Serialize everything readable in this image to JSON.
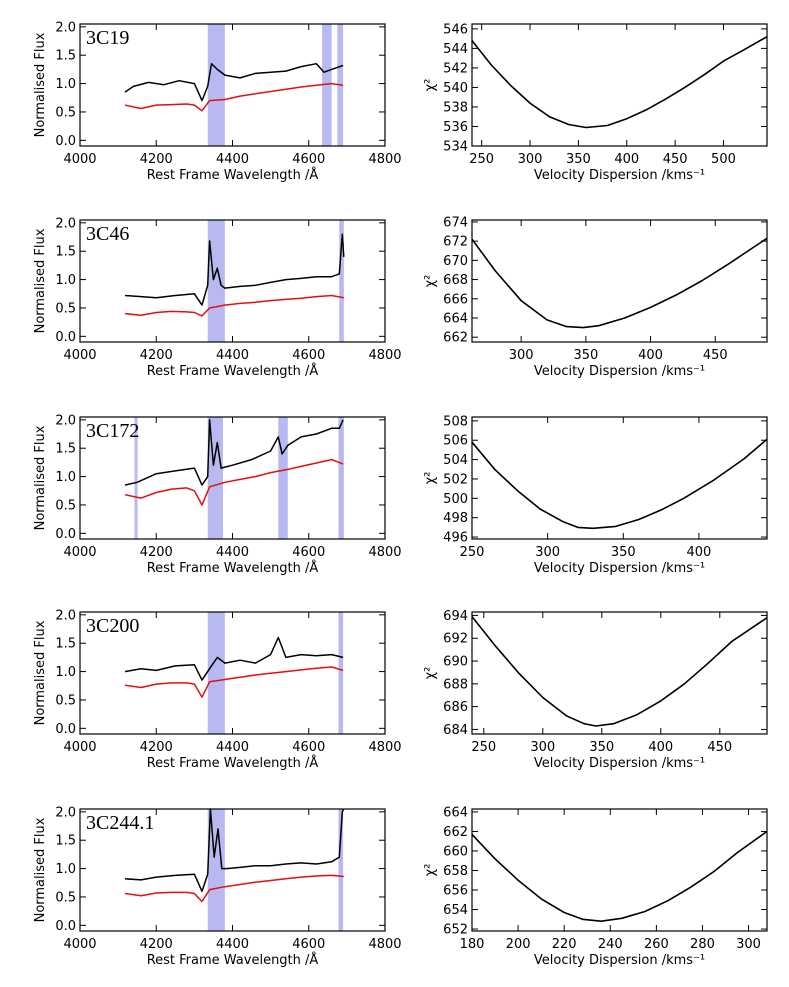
{
  "figure": {
    "styles": {
      "spectrum_color": "#000000",
      "model_color": "#e01010",
      "mask_color": "#b9b9f2",
      "axis_color": "#000000"
    }
  },
  "chart_data": [
    {
      "type": "line",
      "panel": "spectrum",
      "label": "3C19",
      "xlabel": "Rest Frame Wavelength /Å",
      "ylabel": "Normalised Flux",
      "xlim": [
        4000,
        4800
      ],
      "ylim": [
        -0.1,
        2.05
      ],
      "xticks": [
        4000,
        4200,
        4400,
        4600,
        4800
      ],
      "yticks": [
        0.0,
        0.5,
        1.0,
        1.5,
        2.0
      ],
      "mask_regions": [
        [
          4335,
          4380
        ],
        [
          4635,
          4660
        ],
        [
          4675,
          4690
        ]
      ],
      "series": [
        {
          "role": "spectrum",
          "x": [
            4118,
            4140,
            4180,
            4220,
            4260,
            4300,
            4320,
            4335,
            4345,
            4360,
            4380,
            4420,
            4460,
            4500,
            4540,
            4580,
            4620,
            4640,
            4660,
            4690
          ],
          "y": [
            0.85,
            0.95,
            1.02,
            0.98,
            1.05,
            1.0,
            0.7,
            0.95,
            1.35,
            1.25,
            1.15,
            1.1,
            1.18,
            1.2,
            1.22,
            1.3,
            1.35,
            1.2,
            1.25,
            1.32
          ]
        },
        {
          "role": "model",
          "x": [
            4118,
            4160,
            4200,
            4240,
            4280,
            4300,
            4320,
            4340,
            4380,
            4420,
            4460,
            4500,
            4540,
            4580,
            4620,
            4660,
            4690
          ],
          "y": [
            0.62,
            0.56,
            0.62,
            0.63,
            0.64,
            0.62,
            0.52,
            0.7,
            0.72,
            0.78,
            0.82,
            0.86,
            0.9,
            0.94,
            0.97,
            1.0,
            0.97
          ]
        }
      ]
    },
    {
      "type": "line",
      "panel": "chi2",
      "label": "",
      "xlabel": "Velocity Dispersion /kms⁻¹",
      "ylabel": "χ²",
      "xlim": [
        240,
        545
      ],
      "ylim": [
        534,
        546.5
      ],
      "xticks": [
        250,
        300,
        350,
        400,
        450,
        500
      ],
      "yticks": [
        534,
        536,
        538,
        540,
        542,
        544,
        546
      ],
      "series": [
        {
          "role": "chi2",
          "x": [
            240,
            260,
            280,
            300,
            320,
            340,
            358,
            380,
            400,
            420,
            440,
            460,
            480,
            500,
            520,
            545
          ],
          "y": [
            544.8,
            542.3,
            540.2,
            538.4,
            537.0,
            536.2,
            535.9,
            536.1,
            536.8,
            537.7,
            538.8,
            540.0,
            541.3,
            542.7,
            543.8,
            545.2
          ]
        }
      ]
    },
    {
      "type": "line",
      "panel": "spectrum",
      "label": "3C46",
      "xlabel": "Rest Frame Wavelength /Å",
      "ylabel": "Normalised Flux",
      "xlim": [
        4000,
        4800
      ],
      "ylim": [
        -0.1,
        2.05
      ],
      "xticks": [
        4000,
        4200,
        4400,
        4600,
        4800
      ],
      "yticks": [
        0.0,
        0.5,
        1.0,
        1.5,
        2.0
      ],
      "mask_regions": [
        [
          4335,
          4380
        ],
        [
          4680,
          4692
        ]
      ],
      "series": [
        {
          "role": "spectrum",
          "x": [
            4118,
            4160,
            4200,
            4250,
            4300,
            4320,
            4335,
            4340,
            4350,
            4360,
            4370,
            4380,
            4420,
            4460,
            4500,
            4540,
            4580,
            4620,
            4660,
            4680,
            4688,
            4692
          ],
          "y": [
            0.72,
            0.7,
            0.68,
            0.72,
            0.75,
            0.55,
            0.9,
            1.68,
            1.0,
            1.2,
            0.9,
            0.85,
            0.88,
            0.9,
            0.95,
            1.0,
            1.02,
            1.05,
            1.05,
            1.1,
            1.8,
            1.4
          ]
        },
        {
          "role": "model",
          "x": [
            4118,
            4160,
            4200,
            4240,
            4280,
            4300,
            4320,
            4340,
            4380,
            4420,
            4460,
            4500,
            4540,
            4580,
            4620,
            4660,
            4692
          ],
          "y": [
            0.4,
            0.37,
            0.42,
            0.44,
            0.43,
            0.42,
            0.36,
            0.5,
            0.55,
            0.58,
            0.6,
            0.63,
            0.65,
            0.67,
            0.7,
            0.72,
            0.68
          ]
        }
      ]
    },
    {
      "type": "line",
      "panel": "chi2",
      "label": "",
      "xlabel": "Velocity Dispersion /kms⁻¹",
      "ylabel": "χ²",
      "xlim": [
        262,
        490
      ],
      "ylim": [
        661.5,
        674.2
      ],
      "xticks": [
        300,
        350,
        400,
        450
      ],
      "yticks": [
        662,
        664,
        666,
        668,
        670,
        672,
        674
      ],
      "series": [
        {
          "role": "chi2",
          "x": [
            262,
            280,
            300,
            320,
            335,
            348,
            360,
            380,
            400,
            420,
            440,
            460,
            490
          ],
          "y": [
            672.2,
            668.9,
            665.8,
            663.8,
            663.1,
            663.0,
            663.2,
            664.0,
            665.1,
            666.4,
            667.9,
            669.6,
            672.3
          ]
        }
      ]
    },
    {
      "type": "line",
      "panel": "spectrum",
      "label": "3C172",
      "xlabel": "Rest Frame Wavelength /Å",
      "ylabel": "Normalised Flux",
      "xlim": [
        4000,
        4800
      ],
      "ylim": [
        -0.1,
        2.05
      ],
      "xticks": [
        4000,
        4200,
        4400,
        4600,
        4800
      ],
      "yticks": [
        0.0,
        0.5,
        1.0,
        1.5,
        2.0
      ],
      "mask_regions": [
        [
          4143,
          4151
        ],
        [
          4335,
          4375
        ],
        [
          4520,
          4545
        ],
        [
          4678,
          4692
        ]
      ],
      "series": [
        {
          "role": "spectrum",
          "x": [
            4118,
            4150,
            4200,
            4250,
            4300,
            4320,
            4335,
            4340,
            4350,
            4360,
            4370,
            4400,
            4450,
            4500,
            4520,
            4530,
            4545,
            4580,
            4620,
            4660,
            4680,
            4690
          ],
          "y": [
            0.85,
            0.9,
            1.05,
            1.1,
            1.15,
            0.85,
            1.0,
            2.0,
            1.2,
            1.6,
            1.15,
            1.2,
            1.3,
            1.45,
            1.7,
            1.4,
            1.55,
            1.7,
            1.75,
            1.85,
            1.85,
            2.0
          ]
        },
        {
          "role": "model",
          "x": [
            4118,
            4160,
            4200,
            4240,
            4280,
            4300,
            4320,
            4340,
            4380,
            4420,
            4460,
            4500,
            4540,
            4580,
            4620,
            4660,
            4690
          ],
          "y": [
            0.68,
            0.62,
            0.72,
            0.78,
            0.8,
            0.75,
            0.5,
            0.82,
            0.9,
            0.95,
            1.0,
            1.07,
            1.12,
            1.18,
            1.24,
            1.3,
            1.22
          ]
        }
      ]
    },
    {
      "type": "line",
      "panel": "chi2",
      "label": "",
      "xlabel": "Velocity Dispersion /kms⁻¹",
      "ylabel": "χ²",
      "xlim": [
        250,
        445
      ],
      "ylim": [
        495.8,
        508.4
      ],
      "xticks": [
        250,
        300,
        350,
        400
      ],
      "yticks": [
        496,
        498,
        500,
        502,
        504,
        506,
        508
      ],
      "series": [
        {
          "role": "chi2",
          "x": [
            250,
            265,
            280,
            295,
            310,
            320,
            330,
            345,
            360,
            375,
            390,
            410,
            430,
            445
          ],
          "y": [
            505.8,
            503.0,
            500.8,
            498.9,
            497.6,
            497.0,
            496.9,
            497.1,
            497.8,
            498.8,
            500.0,
            501.9,
            504.1,
            506.1
          ]
        }
      ]
    },
    {
      "type": "line",
      "panel": "spectrum",
      "label": "3C200",
      "xlabel": "Rest Frame Wavelength /Å",
      "ylabel": "Normalised Flux",
      "xlim": [
        4000,
        4800
      ],
      "ylim": [
        -0.1,
        2.05
      ],
      "xticks": [
        4000,
        4200,
        4400,
        4600,
        4800
      ],
      "yticks": [
        0.0,
        0.5,
        1.0,
        1.5,
        2.0
      ],
      "mask_regions": [
        [
          4335,
          4380
        ],
        [
          4678,
          4690
        ]
      ],
      "series": [
        {
          "role": "spectrum",
          "x": [
            4118,
            4160,
            4200,
            4250,
            4300,
            4320,
            4340,
            4360,
            4380,
            4420,
            4460,
            4500,
            4520,
            4540,
            4580,
            4620,
            4660,
            4690
          ],
          "y": [
            1.0,
            1.05,
            1.02,
            1.1,
            1.12,
            0.85,
            1.05,
            1.25,
            1.15,
            1.2,
            1.15,
            1.3,
            1.6,
            1.25,
            1.3,
            1.28,
            1.3,
            1.25
          ]
        },
        {
          "role": "model",
          "x": [
            4118,
            4160,
            4200,
            4240,
            4280,
            4300,
            4320,
            4340,
            4380,
            4420,
            4460,
            4500,
            4540,
            4580,
            4620,
            4660,
            4690
          ],
          "y": [
            0.76,
            0.72,
            0.78,
            0.8,
            0.8,
            0.78,
            0.55,
            0.82,
            0.86,
            0.9,
            0.94,
            0.97,
            1.0,
            1.03,
            1.06,
            1.08,
            1.02
          ]
        }
      ]
    },
    {
      "type": "line",
      "panel": "chi2",
      "label": "",
      "xlabel": "Velocity Dispersion /kms⁻¹",
      "ylabel": "χ²",
      "xlim": [
        240,
        490
      ],
      "ylim": [
        683.6,
        694.3
      ],
      "xticks": [
        250,
        300,
        350,
        400,
        450
      ],
      "yticks": [
        684,
        686,
        688,
        690,
        692,
        694
      ],
      "series": [
        {
          "role": "chi2",
          "x": [
            240,
            260,
            280,
            300,
            320,
            335,
            345,
            360,
            380,
            400,
            420,
            440,
            460,
            490
          ],
          "y": [
            693.9,
            691.3,
            688.9,
            686.8,
            685.2,
            684.5,
            684.3,
            684.5,
            685.3,
            686.5,
            688.0,
            689.8,
            691.7,
            693.8
          ]
        }
      ]
    },
    {
      "type": "line",
      "panel": "spectrum",
      "label": "3C244.1",
      "xlabel": "Rest Frame Wavelength /Å",
      "ylabel": "Normalised Flux",
      "xlim": [
        4000,
        4800
      ],
      "ylim": [
        -0.1,
        2.05
      ],
      "xticks": [
        4000,
        4200,
        4400,
        4600,
        4800
      ],
      "yticks": [
        0.0,
        0.5,
        1.0,
        1.5,
        2.0
      ],
      "mask_regions": [
        [
          4335,
          4380
        ],
        [
          4678,
          4690
        ]
      ],
      "series": [
        {
          "role": "spectrum",
          "x": [
            4118,
            4160,
            4200,
            4250,
            4300,
            4320,
            4335,
            4342,
            4352,
            4362,
            4372,
            4385,
            4420,
            4460,
            4500,
            4540,
            4580,
            4620,
            4660,
            4680,
            4688,
            4692
          ],
          "y": [
            0.82,
            0.8,
            0.85,
            0.88,
            0.9,
            0.6,
            0.9,
            2.05,
            1.2,
            1.7,
            1.0,
            1.0,
            1.02,
            1.05,
            1.05,
            1.08,
            1.1,
            1.08,
            1.12,
            1.2,
            2.0,
            2.05
          ]
        },
        {
          "role": "model",
          "x": [
            4118,
            4160,
            4200,
            4240,
            4280,
            4300,
            4320,
            4340,
            4380,
            4420,
            4460,
            4500,
            4540,
            4580,
            4620,
            4660,
            4692
          ],
          "y": [
            0.56,
            0.52,
            0.57,
            0.58,
            0.58,
            0.56,
            0.42,
            0.63,
            0.68,
            0.72,
            0.76,
            0.79,
            0.82,
            0.85,
            0.87,
            0.88,
            0.86
          ]
        }
      ]
    },
    {
      "type": "line",
      "panel": "chi2",
      "label": "",
      "xlabel": "Velocity Dispersion /kms⁻¹",
      "ylabel": "χ²",
      "xlim": [
        180,
        308
      ],
      "ylim": [
        651.8,
        664.3
      ],
      "xticks": [
        180,
        200,
        220,
        240,
        260,
        280,
        300
      ],
      "yticks": [
        652,
        654,
        656,
        658,
        660,
        662,
        664
      ],
      "series": [
        {
          "role": "chi2",
          "x": [
            180,
            190,
            200,
            210,
            220,
            228,
            236,
            245,
            255,
            265,
            275,
            285,
            295,
            308
          ],
          "y": [
            661.7,
            659.2,
            657.0,
            655.1,
            653.7,
            653.0,
            652.8,
            653.1,
            653.8,
            654.9,
            656.3,
            657.9,
            659.8,
            662.0
          ]
        }
      ]
    }
  ]
}
